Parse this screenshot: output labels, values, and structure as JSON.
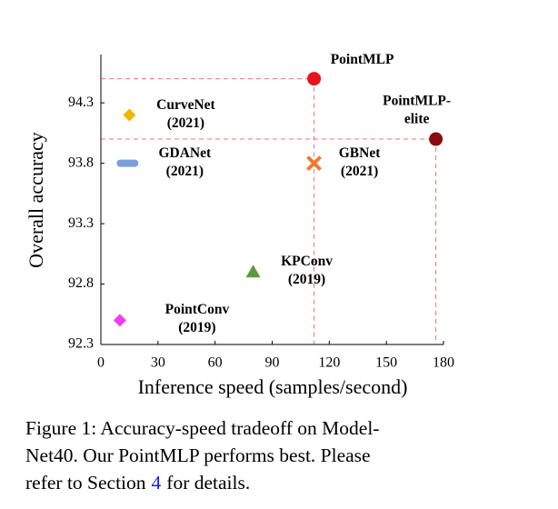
{
  "chart_data": {
    "type": "scatter",
    "xlabel": "Inference speed (samples/second)",
    "ylabel": "Overall accuracy",
    "xlim": [
      0,
      180
    ],
    "ylim": [
      92.3,
      94.7
    ],
    "xticks": [
      0,
      30,
      60,
      90,
      120,
      150,
      180
    ],
    "yticks": [
      94.3,
      93.8,
      93.3,
      92.8,
      92.3
    ],
    "series": [
      {
        "label_lines": [
          "PointMLP"
        ],
        "marker": "circle",
        "color": "#e8141a",
        "x": 112,
        "y": 94.5,
        "reference_lines": true
      },
      {
        "label_lines": [
          "PointMLP-",
          "elite"
        ],
        "marker": "circle",
        "color": "#8b0a0a",
        "x": 176,
        "y": 94.0,
        "reference_lines": true
      },
      {
        "label_lines": [
          "CurveNet",
          "(2021)"
        ],
        "marker": "diamond",
        "color": "#f5b400",
        "x": 15,
        "y": 94.2
      },
      {
        "label_lines": [
          "GDANet",
          "(2021)"
        ],
        "marker": "dash",
        "color": "#7a9fd8",
        "x": 14,
        "y": 93.8
      },
      {
        "label_lines": [
          "GBNet",
          "(2021)"
        ],
        "marker": "x",
        "color": "#ef7a30",
        "x": 112,
        "y": 93.8
      },
      {
        "label_lines": [
          "KPConv",
          "(2019)"
        ],
        "marker": "triangle",
        "color": "#5a9a3a",
        "x": 80,
        "y": 92.9
      },
      {
        "label_lines": [
          "PointConv",
          "(2019)"
        ],
        "marker": "diamond",
        "color": "#f23cf0",
        "x": 10,
        "y": 92.5
      }
    ]
  },
  "caption": {
    "lines": [
      "Figure 1: Accuracy-speed tradeoff on Model-",
      "Net40. Our PointMLP performs best. Please"
    ],
    "last_line": {
      "before": "refer to Section",
      "link": "4",
      "after": "for details."
    }
  }
}
